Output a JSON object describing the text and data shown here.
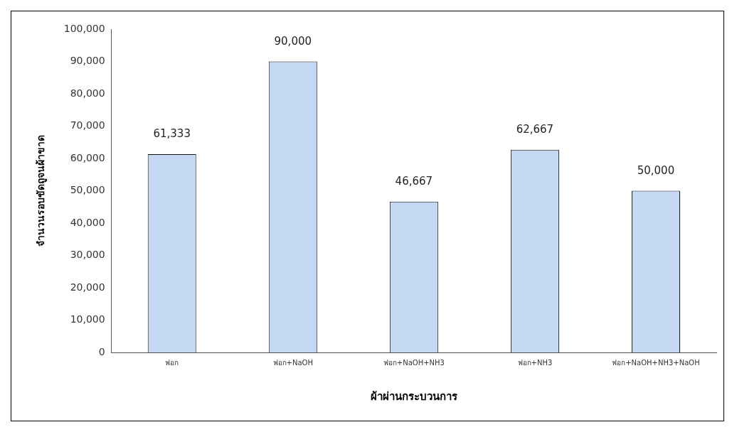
{
  "chart_data": {
    "type": "bar",
    "xlabel": "ผ้าผ่านกระบวนการ",
    "ylabel": "จำนวนรอบขัดถูจนผ้าขาด",
    "categories": [
      "ฟอก",
      "ฟอก+NaOH",
      "ฟอก+NaOH+NH3",
      "ฟอก+NH3",
      "ฟอก+NaOH+NH3+NaOH"
    ],
    "values": [
      61333,
      90000,
      46667,
      62667,
      50000
    ],
    "color": "#c4d8f4",
    "ylim": [
      0,
      100000
    ],
    "yticks": [
      {
        "value": 0,
        "label": "0"
      },
      {
        "value": 10000,
        "label": "10,000"
      },
      {
        "value": 20000,
        "label": "20,000"
      },
      {
        "value": 30000,
        "label": "30,000"
      },
      {
        "value": 40000,
        "label": "40,000"
      },
      {
        "value": 50000,
        "label": "50,000"
      },
      {
        "value": 60000,
        "label": "60,000"
      },
      {
        "value": 70000,
        "label": "70,000"
      },
      {
        "value": 80000,
        "label": "80,000"
      },
      {
        "value": 90000,
        "label": "90,000"
      },
      {
        "value": 100000,
        "label": "100,000"
      }
    ],
    "value_labels": [
      "61,333",
      "90,000",
      "46,667",
      "62,667",
      "50,000"
    ],
    "grid": false,
    "legend": false
  }
}
